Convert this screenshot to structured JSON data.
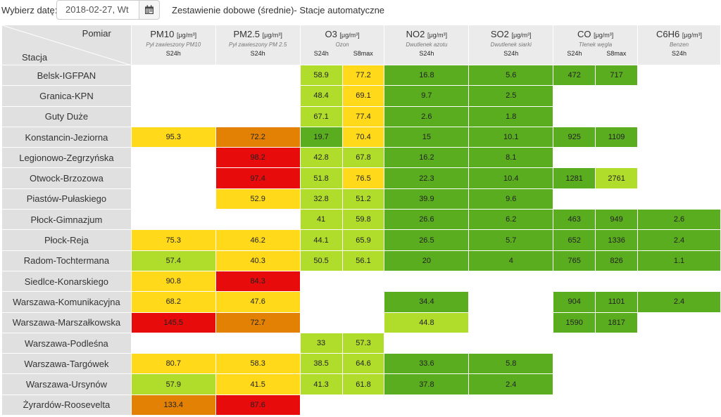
{
  "toolbar": {
    "date_label": "Wybierz datę:",
    "date_value": "2018-02-27, Wt",
    "calendar_icon": "calendar-icon",
    "report_title": "Zestawienie dobowe (średnie)- Stacje automatyczne"
  },
  "header": {
    "pomiar": "Pomiar",
    "stacja": "Stacja",
    "pollutants": [
      {
        "name": "PM10",
        "unit": "[μg/m³]",
        "desc": "Pył zawieszony PM10",
        "subs": [
          "S24h"
        ]
      },
      {
        "name": "PM2.5",
        "unit": "[μg/m³]",
        "desc": "Pył zawieszony PM 2.5",
        "subs": [
          "S24h"
        ]
      },
      {
        "name": "O3",
        "unit": "[μg/m³]",
        "desc": "Ozon",
        "subs": [
          "S24h",
          "S8max"
        ]
      },
      {
        "name": "NO2",
        "unit": "[μg/m³]",
        "desc": "Dwutlenek azotu",
        "subs": [
          "S24h"
        ]
      },
      {
        "name": "SO2",
        "unit": "[μg/m³]",
        "desc": "Dwutlenek siarki",
        "subs": [
          "S24h"
        ]
      },
      {
        "name": "CO",
        "unit": "[μg/m³]",
        "desc": "Tlenek węgla",
        "subs": [
          "S24h",
          "S8max"
        ]
      },
      {
        "name": "C6H6",
        "unit": "[μg/m³]",
        "desc": "Benzen",
        "subs": [
          "S24h"
        ]
      }
    ]
  },
  "colors": {
    "very_good": "#5aad1f",
    "good": "#b0dc2b",
    "moderate": "#ffd91a",
    "sufficient": "#e38104",
    "bad": "#e80b0b",
    "empty": "#ffffff"
  },
  "rows": [
    {
      "station": "Belsk-IGFPAN",
      "cells": [
        {
          "v": "",
          "c": "empty"
        },
        {
          "v": "",
          "c": "empty"
        },
        {
          "v": "58.9",
          "c": "good"
        },
        {
          "v": "77.2",
          "c": "moderate"
        },
        {
          "v": "16.8",
          "c": "very_good"
        },
        {
          "v": "5.6",
          "c": "very_good"
        },
        {
          "v": "472",
          "c": "very_good"
        },
        {
          "v": "717",
          "c": "very_good"
        },
        {
          "v": "",
          "c": "empty"
        }
      ]
    },
    {
      "station": "Granica-KPN",
      "cells": [
        {
          "v": "",
          "c": "empty"
        },
        {
          "v": "",
          "c": "empty"
        },
        {
          "v": "48.4",
          "c": "good"
        },
        {
          "v": "69.1",
          "c": "moderate"
        },
        {
          "v": "9.7",
          "c": "very_good"
        },
        {
          "v": "2.5",
          "c": "very_good"
        },
        {
          "v": "",
          "c": "empty"
        },
        {
          "v": "",
          "c": "empty"
        },
        {
          "v": "",
          "c": "empty"
        }
      ]
    },
    {
      "station": "Guty Duże",
      "cells": [
        {
          "v": "",
          "c": "empty"
        },
        {
          "v": "",
          "c": "empty"
        },
        {
          "v": "67.1",
          "c": "good"
        },
        {
          "v": "77.4",
          "c": "moderate"
        },
        {
          "v": "2.6",
          "c": "very_good"
        },
        {
          "v": "1.8",
          "c": "very_good"
        },
        {
          "v": "",
          "c": "empty"
        },
        {
          "v": "",
          "c": "empty"
        },
        {
          "v": "",
          "c": "empty"
        }
      ]
    },
    {
      "station": "Konstancin-Jeziorna",
      "cells": [
        {
          "v": "95.3",
          "c": "moderate"
        },
        {
          "v": "72.2",
          "c": "sufficient"
        },
        {
          "v": "19.7",
          "c": "very_good"
        },
        {
          "v": "70.4",
          "c": "moderate"
        },
        {
          "v": "15",
          "c": "very_good"
        },
        {
          "v": "10.1",
          "c": "very_good"
        },
        {
          "v": "925",
          "c": "very_good"
        },
        {
          "v": "1109",
          "c": "very_good"
        },
        {
          "v": "",
          "c": "empty"
        }
      ]
    },
    {
      "station": "Legionowo-Zegrzyńska",
      "cells": [
        {
          "v": "",
          "c": "empty"
        },
        {
          "v": "98.2",
          "c": "bad"
        },
        {
          "v": "42.8",
          "c": "good"
        },
        {
          "v": "67.8",
          "c": "good"
        },
        {
          "v": "16.2",
          "c": "very_good"
        },
        {
          "v": "8.1",
          "c": "very_good"
        },
        {
          "v": "",
          "c": "empty"
        },
        {
          "v": "",
          "c": "empty"
        },
        {
          "v": "",
          "c": "empty"
        }
      ]
    },
    {
      "station": "Otwock-Brzozowa",
      "cells": [
        {
          "v": "",
          "c": "empty"
        },
        {
          "v": "97.4",
          "c": "bad"
        },
        {
          "v": "51.8",
          "c": "good"
        },
        {
          "v": "76.5",
          "c": "moderate"
        },
        {
          "v": "22.3",
          "c": "very_good"
        },
        {
          "v": "10.4",
          "c": "very_good"
        },
        {
          "v": "1281",
          "c": "very_good"
        },
        {
          "v": "2761",
          "c": "good"
        },
        {
          "v": "",
          "c": "empty"
        }
      ]
    },
    {
      "station": "Piastów-Pułaskiego",
      "cells": [
        {
          "v": "",
          "c": "empty"
        },
        {
          "v": "52.9",
          "c": "moderate"
        },
        {
          "v": "32.8",
          "c": "good"
        },
        {
          "v": "51.2",
          "c": "good"
        },
        {
          "v": "39.9",
          "c": "very_good"
        },
        {
          "v": "9.6",
          "c": "very_good"
        },
        {
          "v": "",
          "c": "empty"
        },
        {
          "v": "",
          "c": "empty"
        },
        {
          "v": "",
          "c": "empty"
        }
      ]
    },
    {
      "station": "Płock-Gimnazjum",
      "cells": [
        {
          "v": "",
          "c": "empty"
        },
        {
          "v": "",
          "c": "empty"
        },
        {
          "v": "41",
          "c": "good"
        },
        {
          "v": "59.8",
          "c": "good"
        },
        {
          "v": "26.6",
          "c": "very_good"
        },
        {
          "v": "6.2",
          "c": "very_good"
        },
        {
          "v": "463",
          "c": "very_good"
        },
        {
          "v": "949",
          "c": "very_good"
        },
        {
          "v": "2.6",
          "c": "very_good"
        }
      ]
    },
    {
      "station": "Płock-Reja",
      "cells": [
        {
          "v": "75.3",
          "c": "moderate"
        },
        {
          "v": "46.2",
          "c": "moderate"
        },
        {
          "v": "44.1",
          "c": "good"
        },
        {
          "v": "65.9",
          "c": "good"
        },
        {
          "v": "26.5",
          "c": "very_good"
        },
        {
          "v": "5.7",
          "c": "very_good"
        },
        {
          "v": "652",
          "c": "very_good"
        },
        {
          "v": "1336",
          "c": "very_good"
        },
        {
          "v": "2.4",
          "c": "very_good"
        }
      ]
    },
    {
      "station": "Radom-Tochtermana",
      "cells": [
        {
          "v": "57.4",
          "c": "good"
        },
        {
          "v": "40.3",
          "c": "moderate"
        },
        {
          "v": "50.5",
          "c": "good"
        },
        {
          "v": "56.1",
          "c": "good"
        },
        {
          "v": "20",
          "c": "very_good"
        },
        {
          "v": "4",
          "c": "very_good"
        },
        {
          "v": "765",
          "c": "very_good"
        },
        {
          "v": "826",
          "c": "very_good"
        },
        {
          "v": "1.1",
          "c": "very_good"
        }
      ]
    },
    {
      "station": "Siedlce-Konarskiego",
      "cells": [
        {
          "v": "90.8",
          "c": "moderate"
        },
        {
          "v": "84.3",
          "c": "bad"
        },
        {
          "v": "",
          "c": "empty"
        },
        {
          "v": "",
          "c": "empty"
        },
        {
          "v": "",
          "c": "empty"
        },
        {
          "v": "",
          "c": "empty"
        },
        {
          "v": "",
          "c": "empty"
        },
        {
          "v": "",
          "c": "empty"
        },
        {
          "v": "",
          "c": "empty"
        }
      ]
    },
    {
      "station": "Warszawa-Komunikacyjna",
      "cells": [
        {
          "v": "68.2",
          "c": "moderate"
        },
        {
          "v": "47.6",
          "c": "moderate"
        },
        {
          "v": "",
          "c": "empty"
        },
        {
          "v": "",
          "c": "empty"
        },
        {
          "v": "34.4",
          "c": "very_good"
        },
        {
          "v": "",
          "c": "empty"
        },
        {
          "v": "904",
          "c": "very_good"
        },
        {
          "v": "1101",
          "c": "very_good"
        },
        {
          "v": "2.4",
          "c": "very_good"
        }
      ]
    },
    {
      "station": "Warszawa-Marszałkowska",
      "cells": [
        {
          "v": "145.5",
          "c": "bad"
        },
        {
          "v": "72.7",
          "c": "sufficient"
        },
        {
          "v": "",
          "c": "empty"
        },
        {
          "v": "",
          "c": "empty"
        },
        {
          "v": "44.8",
          "c": "good"
        },
        {
          "v": "",
          "c": "empty"
        },
        {
          "v": "1590",
          "c": "very_good"
        },
        {
          "v": "1817",
          "c": "very_good"
        },
        {
          "v": "",
          "c": "empty"
        }
      ]
    },
    {
      "station": "Warszawa-Podleśna",
      "cells": [
        {
          "v": "",
          "c": "empty"
        },
        {
          "v": "",
          "c": "empty"
        },
        {
          "v": "33",
          "c": "good"
        },
        {
          "v": "57.3",
          "c": "good"
        },
        {
          "v": "",
          "c": "empty"
        },
        {
          "v": "",
          "c": "empty"
        },
        {
          "v": "",
          "c": "empty"
        },
        {
          "v": "",
          "c": "empty"
        },
        {
          "v": "",
          "c": "empty"
        }
      ]
    },
    {
      "station": "Warszawa-Targówek",
      "cells": [
        {
          "v": "80.7",
          "c": "moderate"
        },
        {
          "v": "58.3",
          "c": "moderate"
        },
        {
          "v": "38.5",
          "c": "good"
        },
        {
          "v": "64.6",
          "c": "good"
        },
        {
          "v": "33.6",
          "c": "very_good"
        },
        {
          "v": "5.8",
          "c": "very_good"
        },
        {
          "v": "",
          "c": "empty"
        },
        {
          "v": "",
          "c": "empty"
        },
        {
          "v": "",
          "c": "empty"
        }
      ]
    },
    {
      "station": "Warszawa-Ursynów",
      "cells": [
        {
          "v": "57.9",
          "c": "good"
        },
        {
          "v": "41.5",
          "c": "moderate"
        },
        {
          "v": "41.3",
          "c": "good"
        },
        {
          "v": "61.8",
          "c": "good"
        },
        {
          "v": "37.8",
          "c": "very_good"
        },
        {
          "v": "2.4",
          "c": "very_good"
        },
        {
          "v": "",
          "c": "empty"
        },
        {
          "v": "",
          "c": "empty"
        },
        {
          "v": "",
          "c": "empty"
        }
      ]
    },
    {
      "station": "Żyrardów-Roosevelta",
      "cells": [
        {
          "v": "133.4",
          "c": "sufficient"
        },
        {
          "v": "87.6",
          "c": "bad"
        },
        {
          "v": "",
          "c": "empty"
        },
        {
          "v": "",
          "c": "empty"
        },
        {
          "v": "",
          "c": "empty"
        },
        {
          "v": "",
          "c": "empty"
        },
        {
          "v": "",
          "c": "empty"
        },
        {
          "v": "",
          "c": "empty"
        },
        {
          "v": "",
          "c": "empty"
        }
      ]
    }
  ]
}
